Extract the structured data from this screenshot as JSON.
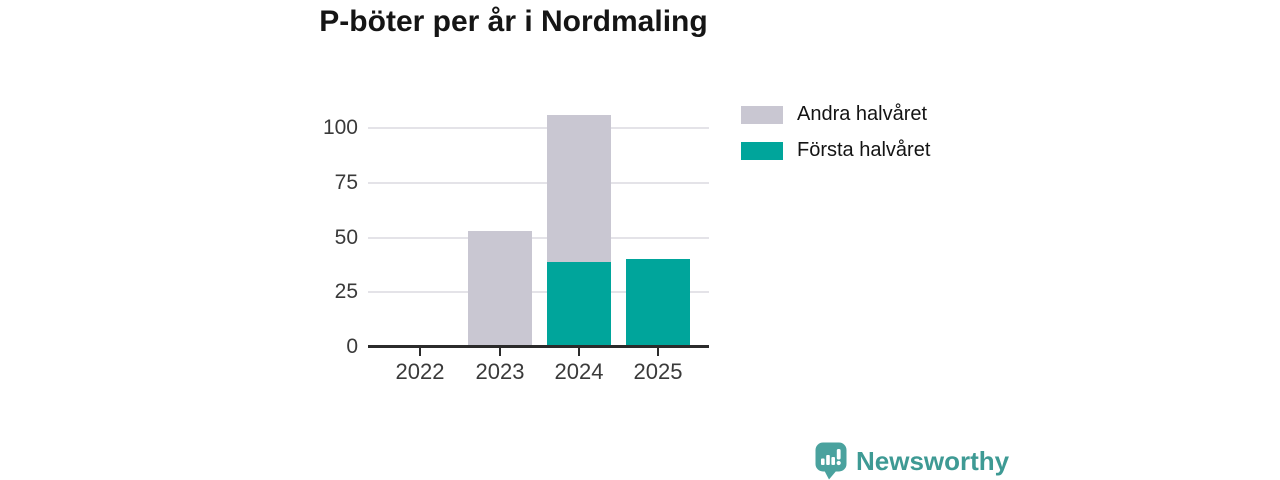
{
  "title": "P-böter per år i Nordmaling",
  "chart_data": {
    "type": "bar",
    "stacked": true,
    "title": "P-böter per år i Nordmaling",
    "categories": [
      "2022",
      "2023",
      "2024",
      "2025"
    ],
    "series": [
      {
        "name": "Andra halvåret",
        "color": "#c9c7d2",
        "values": [
          0,
          53,
          67,
          0
        ]
      },
      {
        "name": "Första halvåret",
        "color": "#00a59b",
        "values": [
          0,
          0,
          39,
          40
        ]
      }
    ],
    "stack_order_bottom_to_top": [
      "Första halvåret",
      "Andra halvåret"
    ],
    "totals": [
      0,
      53,
      106,
      40
    ],
    "xlabel": "",
    "ylabel": "",
    "y_ticks": [
      0,
      25,
      50,
      75,
      100
    ],
    "ylim": [
      0,
      110
    ],
    "grid": "horizontal",
    "legend_position": "right-top"
  },
  "legend": {
    "items": [
      {
        "label": "Andra halvåret",
        "color": "#c9c7d2"
      },
      {
        "label": "Första halvåret",
        "color": "#00a59b"
      }
    ]
  },
  "footer": {
    "brand": "Newsworthy"
  },
  "colors": {
    "accent_teal": "#00a59b",
    "accent_gray": "#c9c7d2",
    "axis": "#2b2b2b",
    "grid": "#e4e3e8",
    "brand_teal": "#3e9a94",
    "logo_teal": "#4aa29e"
  }
}
